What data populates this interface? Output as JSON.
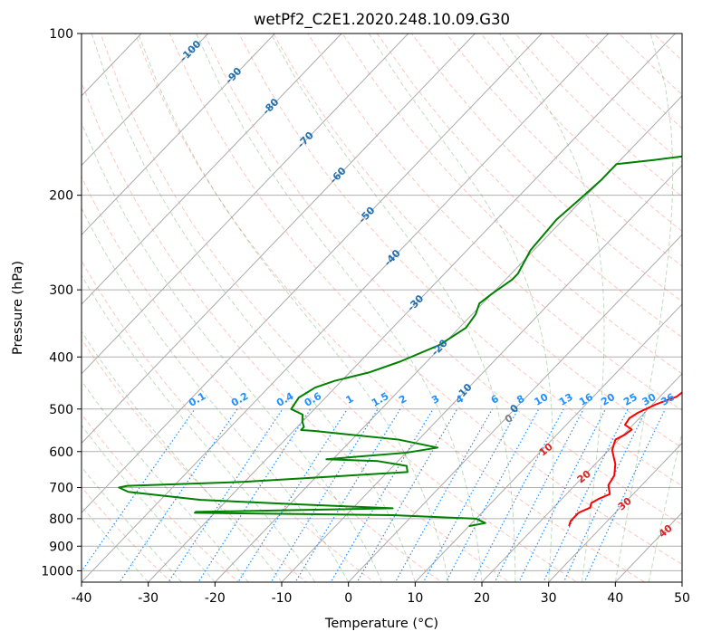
{
  "chart_data": {
    "type": "line",
    "title": "wetPf2_C2E1.2020.248.10.09.G30",
    "xlabel": "Temperature (°C)",
    "ylabel": "Pressure (hPa)",
    "xlim": [
      -40,
      50
    ],
    "ylim_pressure": [
      1050,
      100
    ],
    "y_scale": "log",
    "grid": true,
    "x_ticks": [
      -40,
      -30,
      -20,
      -10,
      0,
      10,
      20,
      30,
      40,
      50
    ],
    "y_ticks": [
      100,
      200,
      300,
      400,
      500,
      600,
      700,
      800,
      900,
      1000
    ],
    "isotherm_labels": [
      -100,
      -90,
      -80,
      -70,
      -60,
      -50,
      -40,
      -30,
      -20,
      -10,
      0
    ],
    "mixing_ratio_labels": [
      "0.1",
      "0.2",
      "0.4",
      "0.6",
      "1",
      "1.5",
      "2",
      "3",
      "4",
      "6",
      "8",
      "10",
      "13",
      "16",
      "20",
      "25",
      "30",
      "36"
    ],
    "moist_adiabat_label": "0",
    "dry_adiabat_labels": [
      "10",
      "20",
      "30",
      "40"
    ],
    "series": [
      {
        "role": "temperature",
        "color": "#ff0000",
        "points": [
          [
            1.5,
            100
          ],
          [
            0,
            104
          ],
          [
            0,
            109
          ],
          [
            1,
            118
          ],
          [
            2,
            130
          ],
          [
            2.5,
            142
          ],
          [
            3,
            158
          ],
          [
            5,
            172
          ],
          [
            7,
            186
          ],
          [
            7.5,
            198
          ],
          [
            8.5,
            210
          ],
          [
            10,
            223
          ],
          [
            12,
            240
          ],
          [
            14,
            258
          ],
          [
            17,
            283
          ],
          [
            18,
            305
          ],
          [
            18.2,
            318
          ],
          [
            19,
            343
          ],
          [
            20,
            367
          ],
          [
            20.2,
            385
          ],
          [
            21,
            395
          ],
          [
            21.2,
            413
          ],
          [
            22.5,
            438
          ],
          [
            23,
            453
          ],
          [
            22.5,
            474
          ],
          [
            20.5,
            490
          ],
          [
            19,
            508
          ],
          [
            18.5,
            520
          ],
          [
            18.8,
            535
          ],
          [
            20.5,
            546
          ],
          [
            20.2,
            558
          ],
          [
            19.5,
            570
          ],
          [
            19.8,
            578
          ],
          [
            20.5,
            596
          ],
          [
            23,
            633
          ],
          [
            24.5,
            665
          ],
          [
            25,
            693
          ],
          [
            26.5,
            720
          ],
          [
            25.5,
            735
          ],
          [
            25,
            748
          ],
          [
            25.5,
            763
          ],
          [
            24.5,
            780
          ],
          [
            24.5,
            808
          ],
          [
            25,
            826
          ]
        ]
      },
      {
        "role": "dewpoint",
        "color": "#008000",
        "points": [
          [
            -5,
            100
          ],
          [
            -6.5,
            108
          ],
          [
            -6.5,
            124
          ],
          [
            -3,
            145
          ],
          [
            -5,
            160
          ],
          [
            -8,
            167
          ],
          [
            -15,
            172
          ],
          [
            -20,
            175
          ],
          [
            -20,
            187
          ],
          [
            -20.5,
            205
          ],
          [
            -21,
            222
          ],
          [
            -20.5,
            253
          ],
          [
            -19,
            280
          ],
          [
            -19,
            287
          ],
          [
            -20,
            305
          ],
          [
            -20.5,
            318
          ],
          [
            -19.5,
            333
          ],
          [
            -19,
            353
          ],
          [
            -20.5,
            380
          ],
          [
            -24,
            408
          ],
          [
            -27,
            427
          ],
          [
            -31,
            443
          ],
          [
            -33,
            456
          ],
          [
            -34,
            476
          ],
          [
            -33.5,
            500
          ],
          [
            -31,
            512
          ],
          [
            -30,
            528
          ],
          [
            -29,
            540
          ],
          [
            -29,
            547
          ],
          [
            -27,
            549
          ],
          [
            -13,
            570
          ],
          [
            -6,
            590
          ],
          [
            -10,
            603
          ],
          [
            -21,
            620
          ],
          [
            -13,
            625
          ],
          [
            -8,
            638
          ],
          [
            -7,
            655
          ],
          [
            -30,
            683
          ],
          [
            -47,
            695
          ],
          [
            -48,
            700
          ],
          [
            -46,
            713
          ],
          [
            -34,
            738
          ],
          [
            -19,
            752
          ],
          [
            -4,
            765
          ],
          [
            -33,
            777
          ],
          [
            -33,
            780
          ],
          [
            -3,
            788
          ],
          [
            10,
            800
          ],
          [
            12,
            815
          ],
          [
            10,
            826
          ]
        ]
      }
    ]
  }
}
